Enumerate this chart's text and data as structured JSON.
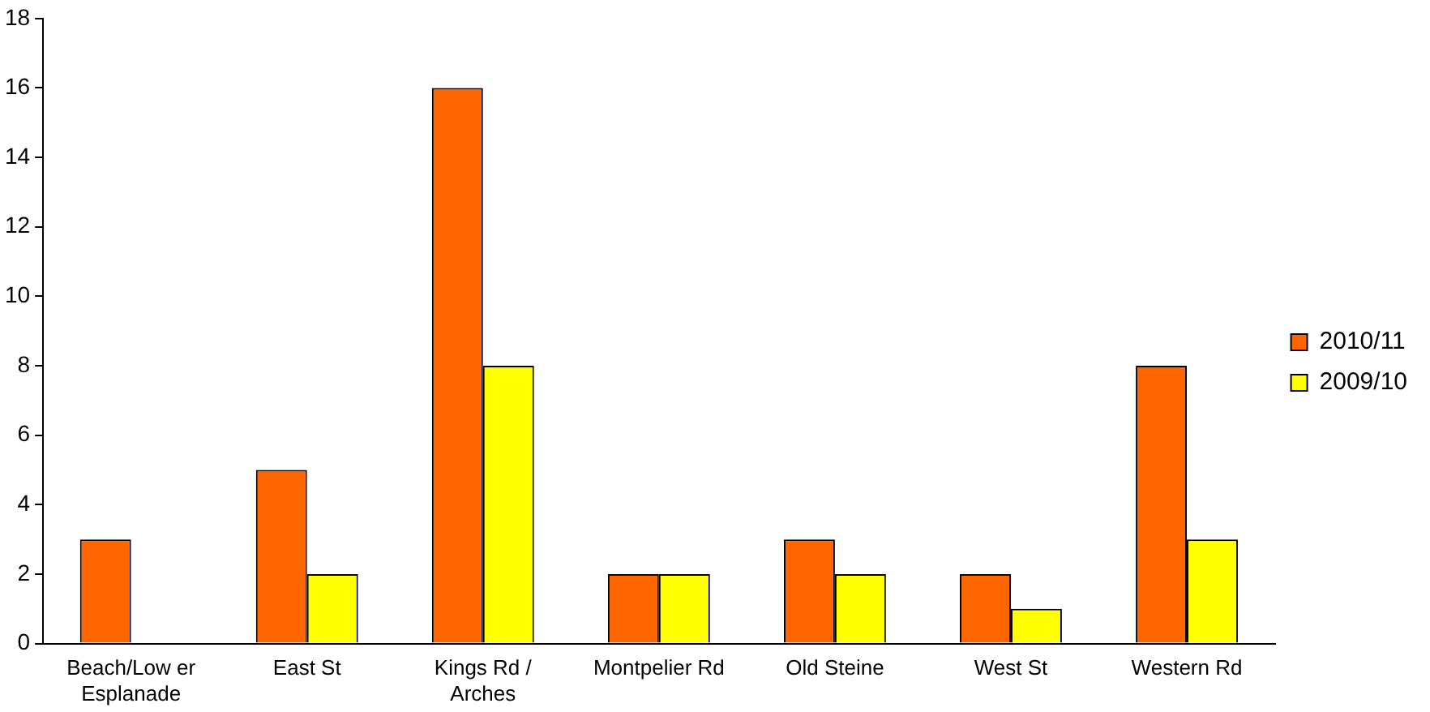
{
  "chart_data": {
    "type": "bar",
    "categories": [
      "Beach/Low er Esplanade",
      "East St",
      "Kings Rd / Arches",
      "Montpelier Rd",
      "Old Steine",
      "West St",
      "Western Rd"
    ],
    "series": [
      {
        "name": "2010/11",
        "color": "#ff6600",
        "values": [
          3,
          5,
          16,
          2,
          3,
          2,
          8
        ]
      },
      {
        "name": "2009/10",
        "color": "#ffff00",
        "values": [
          0,
          2,
          8,
          2,
          2,
          1,
          3
        ]
      }
    ],
    "ylim": [
      0,
      18
    ],
    "yticks": [
      0,
      2,
      4,
      6,
      8,
      10,
      12,
      14,
      16,
      18
    ],
    "grid": false,
    "legend": "right"
  }
}
